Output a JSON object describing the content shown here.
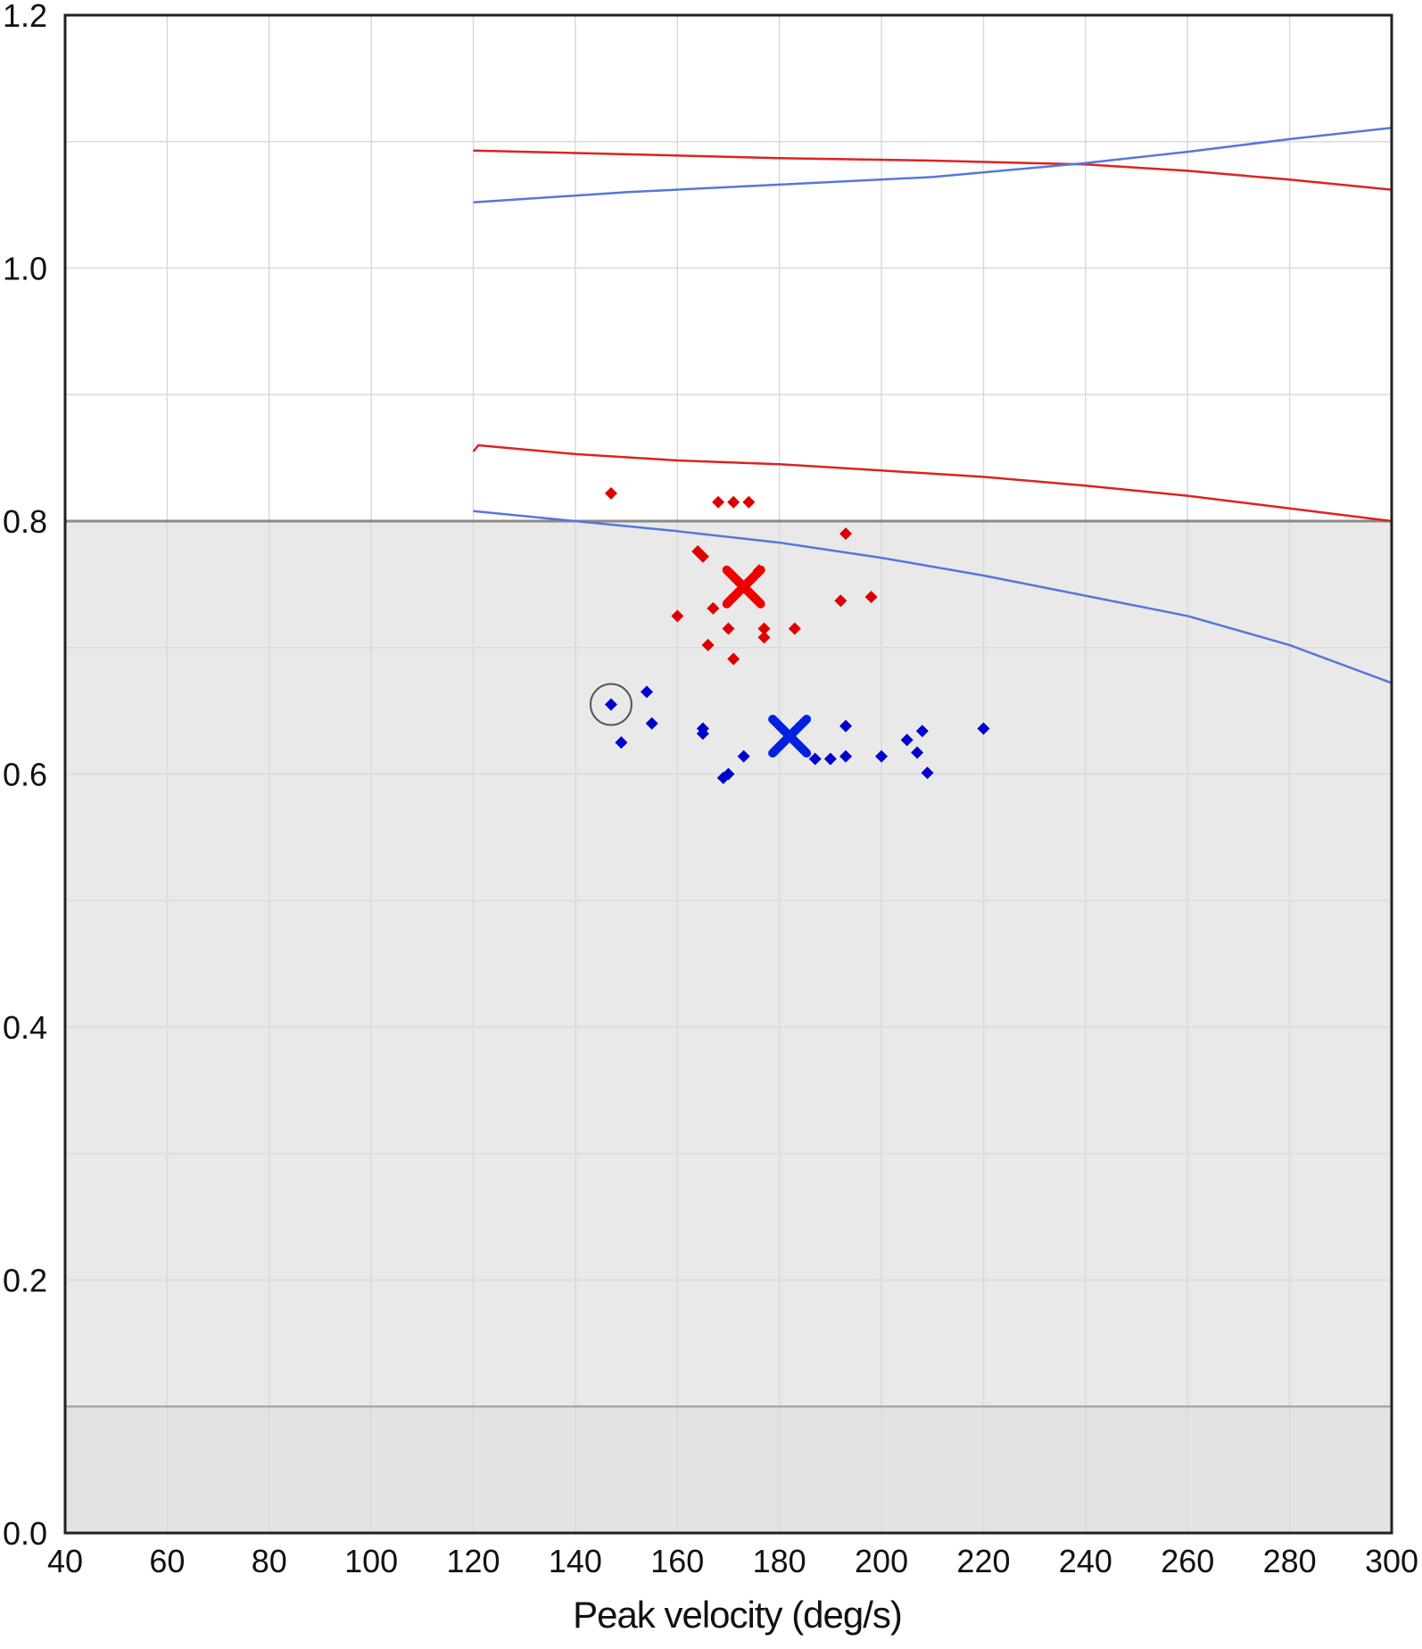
{
  "chart_data": {
    "type": "scatter",
    "title": "",
    "xlabel": "Peak velocity (deg/s)",
    "ylabel": "",
    "xlim": [
      40,
      300
    ],
    "ylim": [
      0.0,
      1.2
    ],
    "x_ticks": [
      40,
      60,
      80,
      100,
      120,
      140,
      160,
      180,
      200,
      220,
      240,
      260,
      280,
      300
    ],
    "x_tick_labels": [
      "40",
      "60",
      "80",
      "100",
      "120",
      "140",
      "160",
      "180",
      "200",
      "220",
      "240",
      "260",
      "280",
      "300"
    ],
    "y_ticks": [
      0.0,
      0.2,
      0.4,
      0.6,
      0.8,
      1.0,
      1.2
    ],
    "y_tick_labels": [
      "0.0",
      "0.2",
      "0.4",
      "0.6",
      "0.8",
      "1.0",
      "1.2"
    ],
    "grid": true,
    "shaded_bands": [
      {
        "y_from": 0.1,
        "y_to": 0.8,
        "color": "#e9e9e9"
      },
      {
        "y_from": 0.0,
        "y_to": 0.1,
        "color": "#e3e3e3"
      }
    ],
    "series": [
      {
        "kind": "line",
        "color": "#dd2222",
        "x": [
          120,
          150,
          180,
          210,
          240,
          260,
          280,
          300
        ],
        "y": [
          1.093,
          1.09,
          1.087,
          1.085,
          1.082,
          1.077,
          1.07,
          1.062
        ]
      },
      {
        "kind": "line",
        "color": "#5577dd",
        "x": [
          120,
          150,
          180,
          210,
          240,
          260,
          280,
          300
        ],
        "y": [
          1.052,
          1.06,
          1.066,
          1.072,
          1.083,
          1.092,
          1.102,
          1.111
        ]
      },
      {
        "kind": "line",
        "color": "#dd2222",
        "x": [
          120,
          121,
          140,
          160,
          180,
          200,
          220,
          240,
          260,
          280,
          300
        ],
        "y": [
          0.855,
          0.86,
          0.853,
          0.848,
          0.845,
          0.84,
          0.835,
          0.828,
          0.82,
          0.81,
          0.8
        ]
      },
      {
        "kind": "line",
        "color": "#5577dd",
        "x": [
          120,
          140,
          160,
          180,
          200,
          220,
          240,
          260,
          280,
          300
        ],
        "y": [
          0.808,
          0.8,
          0.792,
          0.783,
          0.771,
          0.757,
          0.741,
          0.725,
          0.702,
          0.672
        ]
      },
      {
        "kind": "points",
        "color": "#dd0000",
        "x": [
          147,
          168,
          171,
          174,
          193,
          164,
          165,
          176,
          160,
          167,
          192,
          198,
          170,
          177,
          183,
          177,
          166,
          171
        ],
        "y": [
          0.822,
          0.815,
          0.815,
          0.815,
          0.79,
          0.776,
          0.772,
          0.761,
          0.725,
          0.731,
          0.737,
          0.74,
          0.715,
          0.715,
          0.715,
          0.708,
          0.702,
          0.691
        ]
      },
      {
        "kind": "points",
        "color": "#0000cc",
        "x": [
          147,
          154,
          155,
          149,
          165,
          165,
          193,
          205,
          208,
          220,
          169,
          170,
          173,
          187,
          190,
          193,
          200,
          207,
          209
        ],
        "y": [
          0.655,
          0.665,
          0.64,
          0.625,
          0.636,
          0.632,
          0.638,
          0.627,
          0.634,
          0.636,
          0.597,
          0.6,
          0.614,
          0.612,
          0.612,
          0.614,
          0.614,
          0.617,
          0.601
        ]
      },
      {
        "kind": "mean",
        "color": "#ee0000",
        "x": [
          173
        ],
        "y": [
          0.748
        ]
      },
      {
        "kind": "mean",
        "color": "#0022dd",
        "x": [
          182
        ],
        "y": [
          0.63
        ]
      }
    ],
    "annotations": [
      {
        "type": "circle",
        "x": 147,
        "y": 0.655
      }
    ]
  }
}
